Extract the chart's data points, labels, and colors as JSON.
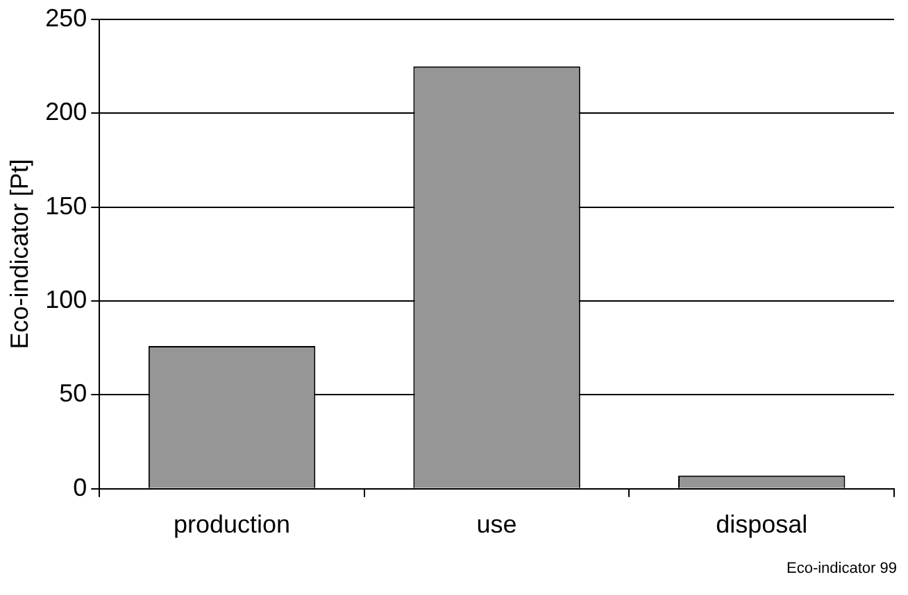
{
  "chart_data": {
    "type": "bar",
    "ylabel": "Eco-indicator [Pt]",
    "categories": [
      "production",
      "use",
      "disposal"
    ],
    "values": [
      76,
      225,
      7
    ],
    "color": "#969696",
    "ylim": [
      0,
      250
    ],
    "yticks": [
      0,
      50,
      100,
      150,
      200,
      250
    ],
    "grid": "y",
    "annotations": [
      "Eco-indicator 99"
    ]
  }
}
